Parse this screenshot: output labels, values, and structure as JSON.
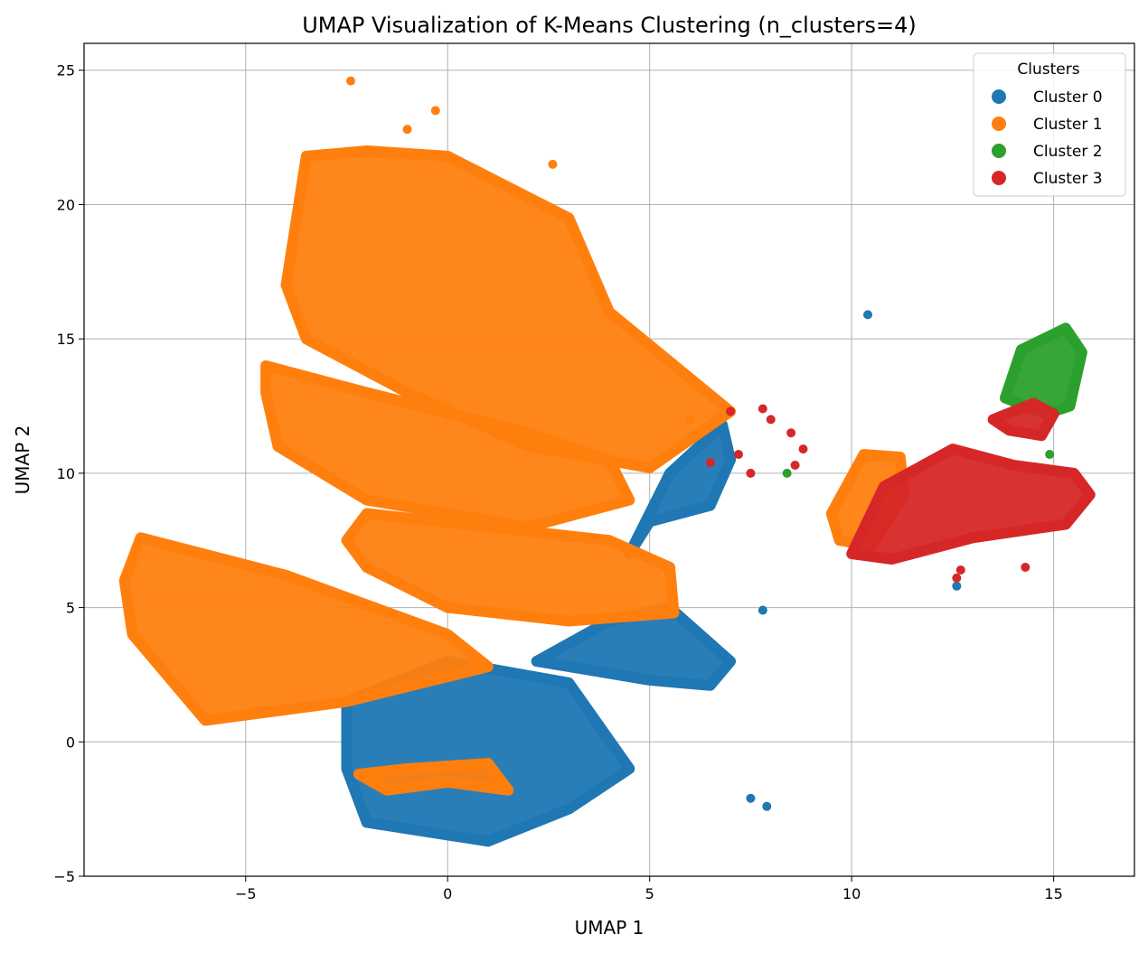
{
  "chart_data": {
    "type": "scatter",
    "title": "UMAP Visualization of K-Means Clustering (n_clusters=4)",
    "xlabel": "UMAP 1",
    "ylabel": "UMAP 2",
    "xlim": [
      -9,
      17
    ],
    "ylim": [
      -5,
      26
    ],
    "x_ticks": [
      -5,
      0,
      5,
      10,
      15
    ],
    "y_ticks": [
      -5,
      0,
      5,
      10,
      15,
      20,
      25
    ],
    "x_tick_labels": [
      "−5",
      "0",
      "5",
      "10",
      "15"
    ],
    "y_tick_labels": [
      "−5",
      "0",
      "5",
      "10",
      "15",
      "20",
      "25"
    ],
    "grid": true,
    "legend": {
      "title": "Clusters",
      "placement": "top-right"
    },
    "series": [
      {
        "name": "Cluster 0",
        "color": "#1f77b4",
        "regions": [
          [
            [
              -2.5,
              1.5
            ],
            [
              0,
              3
            ],
            [
              3,
              2.2
            ],
            [
              4.5,
              -1
            ],
            [
              3,
              -2.5
            ],
            [
              1,
              -3.7
            ],
            [
              -2,
              -3
            ],
            [
              -2.5,
              -1
            ]
          ],
          [
            [
              2.2,
              3
            ],
            [
              4,
              4.5
            ],
            [
              5.5,
              5
            ],
            [
              7,
              3
            ],
            [
              6.5,
              2.1
            ],
            [
              5,
              2.3
            ],
            [
              3,
              2.8
            ]
          ],
          [
            [
              4.5,
              7
            ],
            [
              5.5,
              10
            ],
            [
              6.8,
              11.8
            ],
            [
              7,
              10.5
            ],
            [
              6.5,
              8.8
            ],
            [
              5,
              8.2
            ]
          ]
        ],
        "points": [
          [
            10.4,
            15.9
          ],
          [
            7.8,
            4.9
          ],
          [
            7.5,
            -2.1
          ],
          [
            7.9,
            -2.4
          ],
          [
            12.6,
            5.8
          ]
        ]
      },
      {
        "name": "Cluster 1",
        "color": "#ff7f0e",
        "regions": [
          [
            [
              -8,
              6
            ],
            [
              -7.6,
              7.6
            ],
            [
              -4,
              6.2
            ],
            [
              0,
              4
            ],
            [
              1,
              2.8
            ],
            [
              -2.5,
              1.5
            ],
            [
              -6,
              0.8
            ],
            [
              -7.8,
              4
            ]
          ],
          [
            [
              -4.5,
              13
            ],
            [
              -4.5,
              14
            ],
            [
              -2,
              13
            ],
            [
              2,
              11.5
            ],
            [
              4,
              10.5
            ],
            [
              4.5,
              9
            ],
            [
              2,
              8
            ],
            [
              -2,
              9
            ],
            [
              -4.2,
              11
            ]
          ],
          [
            [
              -4,
              17
            ],
            [
              -3.5,
              21.8
            ],
            [
              -2,
              22
            ],
            [
              0,
              21.8
            ],
            [
              3,
              19.5
            ],
            [
              4,
              16
            ],
            [
              7,
              12.3
            ],
            [
              5,
              10.2
            ],
            [
              2,
              11
            ],
            [
              -1,
              13
            ],
            [
              -3.5,
              15
            ]
          ],
          [
            [
              -2.5,
              7.5
            ],
            [
              -2,
              8.5
            ],
            [
              1,
              8
            ],
            [
              4,
              7.5
            ],
            [
              5.5,
              6.5
            ],
            [
              5.6,
              4.8
            ],
            [
              3,
              4.5
            ],
            [
              0,
              5
            ],
            [
              -2,
              6.5
            ]
          ],
          [
            [
              -2.2,
              -1.2
            ],
            [
              -1.5,
              -1.8
            ],
            [
              0,
              -1.5
            ],
            [
              1.5,
              -1.8
            ],
            [
              1,
              -0.8
            ],
            [
              -1,
              -1
            ]
          ],
          [
            [
              9.5,
              8.5
            ],
            [
              10.3,
              10.7
            ],
            [
              11.2,
              10.6
            ],
            [
              11.3,
              9.2
            ],
            [
              10.5,
              7.3
            ],
            [
              9.7,
              7.5
            ]
          ]
        ],
        "points": [
          [
            -2.4,
            24.6
          ],
          [
            -1,
            22.8
          ],
          [
            -0.3,
            23.5
          ],
          [
            2.6,
            21.5
          ],
          [
            6,
            12
          ]
        ]
      },
      {
        "name": "Cluster 2",
        "color": "#2ca02c",
        "regions": [
          [
            [
              13.8,
              12.8
            ],
            [
              14.2,
              14.6
            ],
            [
              15.3,
              15.4
            ],
            [
              15.7,
              14.5
            ],
            [
              15.4,
              12.5
            ],
            [
              14.8,
              12.2
            ]
          ]
        ],
        "points": [
          [
            14.9,
            10.7
          ],
          [
            8.4,
            10
          ]
        ]
      },
      {
        "name": "Cluster 3",
        "color": "#d62728",
        "regions": [
          [
            [
              10,
              7
            ],
            [
              10.8,
              9.5
            ],
            [
              12.5,
              10.9
            ],
            [
              14,
              10.3
            ],
            [
              15.5,
              10
            ],
            [
              15.9,
              9.2
            ],
            [
              15.3,
              8.1
            ],
            [
              13,
              7.6
            ],
            [
              11,
              6.8
            ]
          ],
          [
            [
              13.5,
              12
            ],
            [
              14.5,
              12.6
            ],
            [
              15,
              12.2
            ],
            [
              14.7,
              11.4
            ],
            [
              13.9,
              11.6
            ]
          ]
        ],
        "points": [
          [
            14.3,
            6.5
          ],
          [
            12.7,
            6.4
          ],
          [
            12.6,
            6.1
          ],
          [
            8,
            12
          ],
          [
            8.5,
            11.5
          ],
          [
            8.8,
            10.9
          ],
          [
            8.6,
            10.3
          ],
          [
            7.5,
            10
          ],
          [
            7,
            12.3
          ],
          [
            7.8,
            12.4
          ],
          [
            6.5,
            10.4
          ],
          [
            7.2,
            10.7
          ]
        ]
      }
    ]
  }
}
